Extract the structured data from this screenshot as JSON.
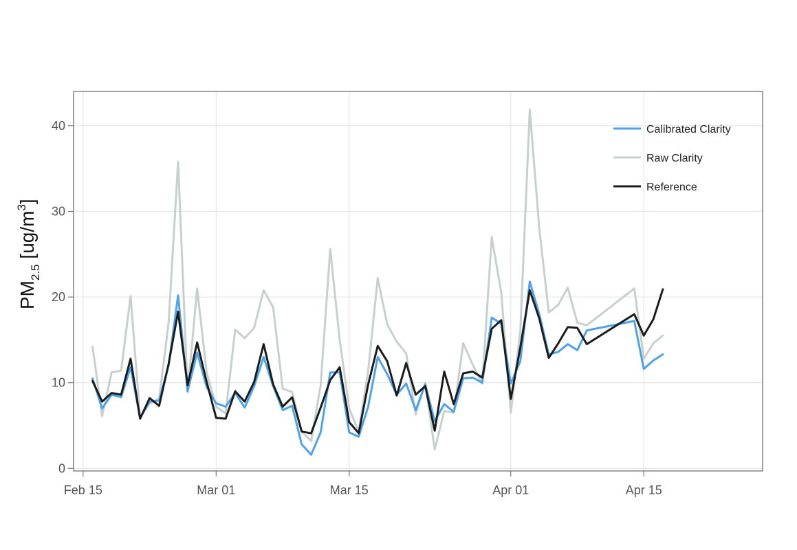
{
  "chart_data": {
    "type": "line",
    "title": "",
    "xlabel": "",
    "ylabel": {
      "main": "PM",
      "subscript": "2.5",
      "unit_prefix": " [ug/m",
      "unit_superscript": "3",
      "unit_suffix": "]"
    },
    "ylim": [
      -0.3,
      44
    ],
    "yticks": [
      0,
      10,
      20,
      30,
      40
    ],
    "x_day_range": [
      -1,
      71.5
    ],
    "xticks": [
      {
        "day": 0,
        "label": "Feb 15"
      },
      {
        "day": 14,
        "label": "Mar 01"
      },
      {
        "day": 28,
        "label": "Mar 15"
      },
      {
        "day": 45,
        "label": "Apr 01"
      },
      {
        "day": 59,
        "label": "Apr 15"
      }
    ],
    "grid": true,
    "legend_position": "top-right",
    "series": [
      {
        "name": "Calibrated Clarity",
        "color": "#4ca3ea",
        "points": [
          [
            1,
            10.5
          ],
          [
            2,
            7
          ],
          [
            3,
            8.6
          ],
          [
            4,
            8.3
          ],
          [
            5,
            11.8
          ],
          [
            6,
            5.9
          ],
          [
            7,
            7.8
          ],
          [
            8,
            7.9
          ],
          [
            9,
            12
          ],
          [
            10,
            20.2
          ],
          [
            11,
            9
          ],
          [
            12,
            13.5
          ],
          [
            13,
            9.5
          ],
          [
            14,
            7.6
          ],
          [
            15,
            7.2
          ],
          [
            16,
            8.8
          ],
          [
            17,
            7.1
          ],
          [
            18,
            9.6
          ],
          [
            19,
            13
          ],
          [
            20,
            9.6
          ],
          [
            21,
            6.8
          ],
          [
            22,
            7.3
          ],
          [
            23,
            2.8
          ],
          [
            24,
            1.6
          ],
          [
            25,
            4.2
          ],
          [
            26,
            11.2
          ],
          [
            27,
            11.2
          ],
          [
            28,
            4.2
          ],
          [
            29,
            3.7
          ],
          [
            30,
            7.2
          ],
          [
            31,
            13
          ],
          [
            32,
            11
          ],
          [
            33,
            8.6
          ],
          [
            34,
            9.9
          ],
          [
            35,
            6.8
          ],
          [
            36,
            9.8
          ],
          [
            37,
            5.5
          ],
          [
            38,
            7.5
          ],
          [
            39,
            6.6
          ],
          [
            40,
            10.5
          ],
          [
            41,
            10.6
          ],
          [
            42,
            10
          ],
          [
            43,
            17.6
          ],
          [
            44,
            16.9
          ],
          [
            45,
            9.9
          ],
          [
            46,
            12.5
          ],
          [
            47,
            21.8
          ],
          [
            48,
            18
          ],
          [
            49,
            13.3
          ],
          [
            50,
            13.6
          ],
          [
            51,
            14.5
          ],
          [
            52,
            13.8
          ],
          [
            53,
            16.1
          ],
          [
            58,
            17.2
          ],
          [
            59,
            11.6
          ],
          [
            60,
            12.6
          ],
          [
            61,
            13.3
          ]
        ]
      },
      {
        "name": "Raw Clarity",
        "color": "#c8d0ce",
        "points": [
          [
            1,
            14.2
          ],
          [
            2,
            6.1
          ],
          [
            3,
            11.2
          ],
          [
            4,
            11.4
          ],
          [
            5,
            20.1
          ],
          [
            6,
            6
          ],
          [
            7,
            7.6
          ],
          [
            8,
            8.1
          ],
          [
            9,
            17
          ],
          [
            10,
            35.8
          ],
          [
            11,
            8.9
          ],
          [
            12,
            21
          ],
          [
            13,
            11.2
          ],
          [
            14,
            7.2
          ],
          [
            15,
            6.4
          ],
          [
            16,
            16.2
          ],
          [
            17,
            15.2
          ],
          [
            18,
            16.4
          ],
          [
            19,
            20.8
          ],
          [
            20,
            18.8
          ],
          [
            21,
            9.3
          ],
          [
            22,
            8.9
          ],
          [
            23,
            4.3
          ],
          [
            24,
            3.2
          ],
          [
            25,
            9.7
          ],
          [
            26,
            25.6
          ],
          [
            27,
            15
          ],
          [
            28,
            7
          ],
          [
            29,
            4.3
          ],
          [
            30,
            11.4
          ],
          [
            31,
            22.2
          ],
          [
            32,
            16.8
          ],
          [
            33,
            14.8
          ],
          [
            34,
            13.4
          ],
          [
            35,
            6.3
          ],
          [
            36,
            10
          ],
          [
            37,
            2.2
          ],
          [
            38,
            6.7
          ],
          [
            39,
            6.5
          ],
          [
            40,
            14.6
          ],
          [
            41,
            12.1
          ],
          [
            42,
            9.9
          ],
          [
            43,
            27
          ],
          [
            44,
            20.5
          ],
          [
            45,
            6.5
          ],
          [
            46,
            16
          ],
          [
            47,
            41.9
          ],
          [
            48,
            28
          ],
          [
            49,
            18.2
          ],
          [
            50,
            19.1
          ],
          [
            51,
            21.1
          ],
          [
            52,
            17
          ],
          [
            53,
            16.7
          ],
          [
            58,
            21
          ],
          [
            59,
            12.8
          ],
          [
            60,
            14.6
          ],
          [
            61,
            15.5
          ]
        ]
      },
      {
        "name": "Reference",
        "color": "#1c1c1c",
        "points": [
          [
            1,
            10.2
          ],
          [
            2,
            7.8
          ],
          [
            3,
            8.8
          ],
          [
            4,
            8.6
          ],
          [
            5,
            12.8
          ],
          [
            6,
            5.8
          ],
          [
            7,
            8.2
          ],
          [
            8,
            7.3
          ],
          [
            9,
            12.2
          ],
          [
            10,
            18.3
          ],
          [
            11,
            9.7
          ],
          [
            12,
            14.7
          ],
          [
            13,
            10.1
          ],
          [
            14,
            5.9
          ],
          [
            15,
            5.8
          ],
          [
            16,
            9
          ],
          [
            17,
            7.8
          ],
          [
            18,
            10.1
          ],
          [
            19,
            14.5
          ],
          [
            20,
            9.8
          ],
          [
            21,
            7.2
          ],
          [
            22,
            8.3
          ],
          [
            23,
            4.3
          ],
          [
            24,
            4.1
          ],
          [
            25,
            7.1
          ],
          [
            26,
            10.3
          ],
          [
            27,
            11.8
          ],
          [
            28,
            5.4
          ],
          [
            29,
            4.1
          ],
          [
            30,
            9.8
          ],
          [
            31,
            14.3
          ],
          [
            32,
            12.5
          ],
          [
            33,
            8.5
          ],
          [
            34,
            12.3
          ],
          [
            35,
            8.6
          ],
          [
            36,
            9.6
          ],
          [
            37,
            4.4
          ],
          [
            38,
            11.3
          ],
          [
            39,
            7.5
          ],
          [
            40,
            11.1
          ],
          [
            41,
            11.3
          ],
          [
            42,
            10.6
          ],
          [
            43,
            16.3
          ],
          [
            44,
            17.3
          ],
          [
            45,
            8.1
          ],
          [
            46,
            14.1
          ],
          [
            47,
            20.8
          ],
          [
            48,
            17.5
          ],
          [
            49,
            12.9
          ],
          [
            50,
            14.6
          ],
          [
            51,
            16.5
          ],
          [
            52,
            16.4
          ],
          [
            53,
            14.5
          ],
          [
            58,
            18
          ],
          [
            59,
            15.5
          ],
          [
            60,
            17.4
          ],
          [
            61,
            20.9
          ]
        ]
      }
    ]
  }
}
